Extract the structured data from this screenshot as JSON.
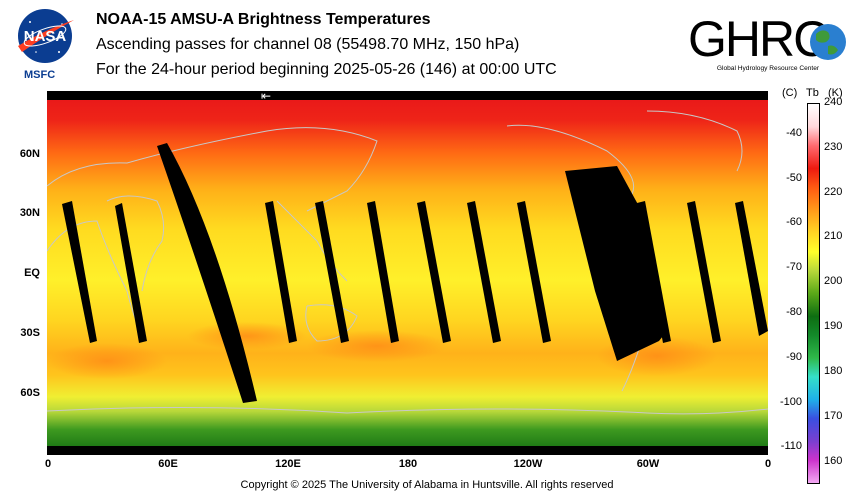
{
  "title": {
    "line1": "NOAA-15 AMSU-A Brightness Temperatures",
    "line2": "Ascending passes for channel 08 (55498.70 MHz, 150 hPa)",
    "line3": "For the 24-hour period beginning 2025-05-26 (146) at 00:00 UTC"
  },
  "logos": {
    "nasa_text": "NASA",
    "msfc_text": "MSFC",
    "ghrc_text": "GHRC",
    "ghrc_sub": "Global Hydrology Resource Center"
  },
  "map": {
    "lat_labels": [
      "60N",
      "30N",
      "EQ",
      "30S",
      "60S"
    ],
    "lon_labels": [
      "0",
      "60E",
      "120E",
      "180",
      "120W",
      "60W",
      "0"
    ],
    "arrow": "⇤"
  },
  "colorbar": {
    "header_c": "(C)",
    "header_tb": "Tb",
    "header_k": "(K)",
    "kelvin_ticks": [
      "240",
      "230",
      "220",
      "210",
      "200",
      "190",
      "180",
      "170",
      "160"
    ],
    "celsius_ticks": [
      "-40",
      "-50",
      "-60",
      "-70",
      "-80",
      "-90",
      "-100",
      "-110"
    ],
    "range_k": [
      155,
      240
    ],
    "colors": [
      "#f3a8f3",
      "#cc33cc",
      "#7a3fd0",
      "#3a4fe0",
      "#1fb0e8",
      "#35e0c8",
      "#2fb84a",
      "#138a2a",
      "#0e6e12",
      "#5aa818",
      "#b8d83a",
      "#ffff2a",
      "#ffcc22",
      "#ff9a1a",
      "#ff5a12",
      "#ee1a10",
      "#ff6a70",
      "#ffd8dc",
      "#ffffff"
    ]
  },
  "copyright": "Copyright © 2025 The University of Alabama in Huntsville.  All rights reserved"
}
